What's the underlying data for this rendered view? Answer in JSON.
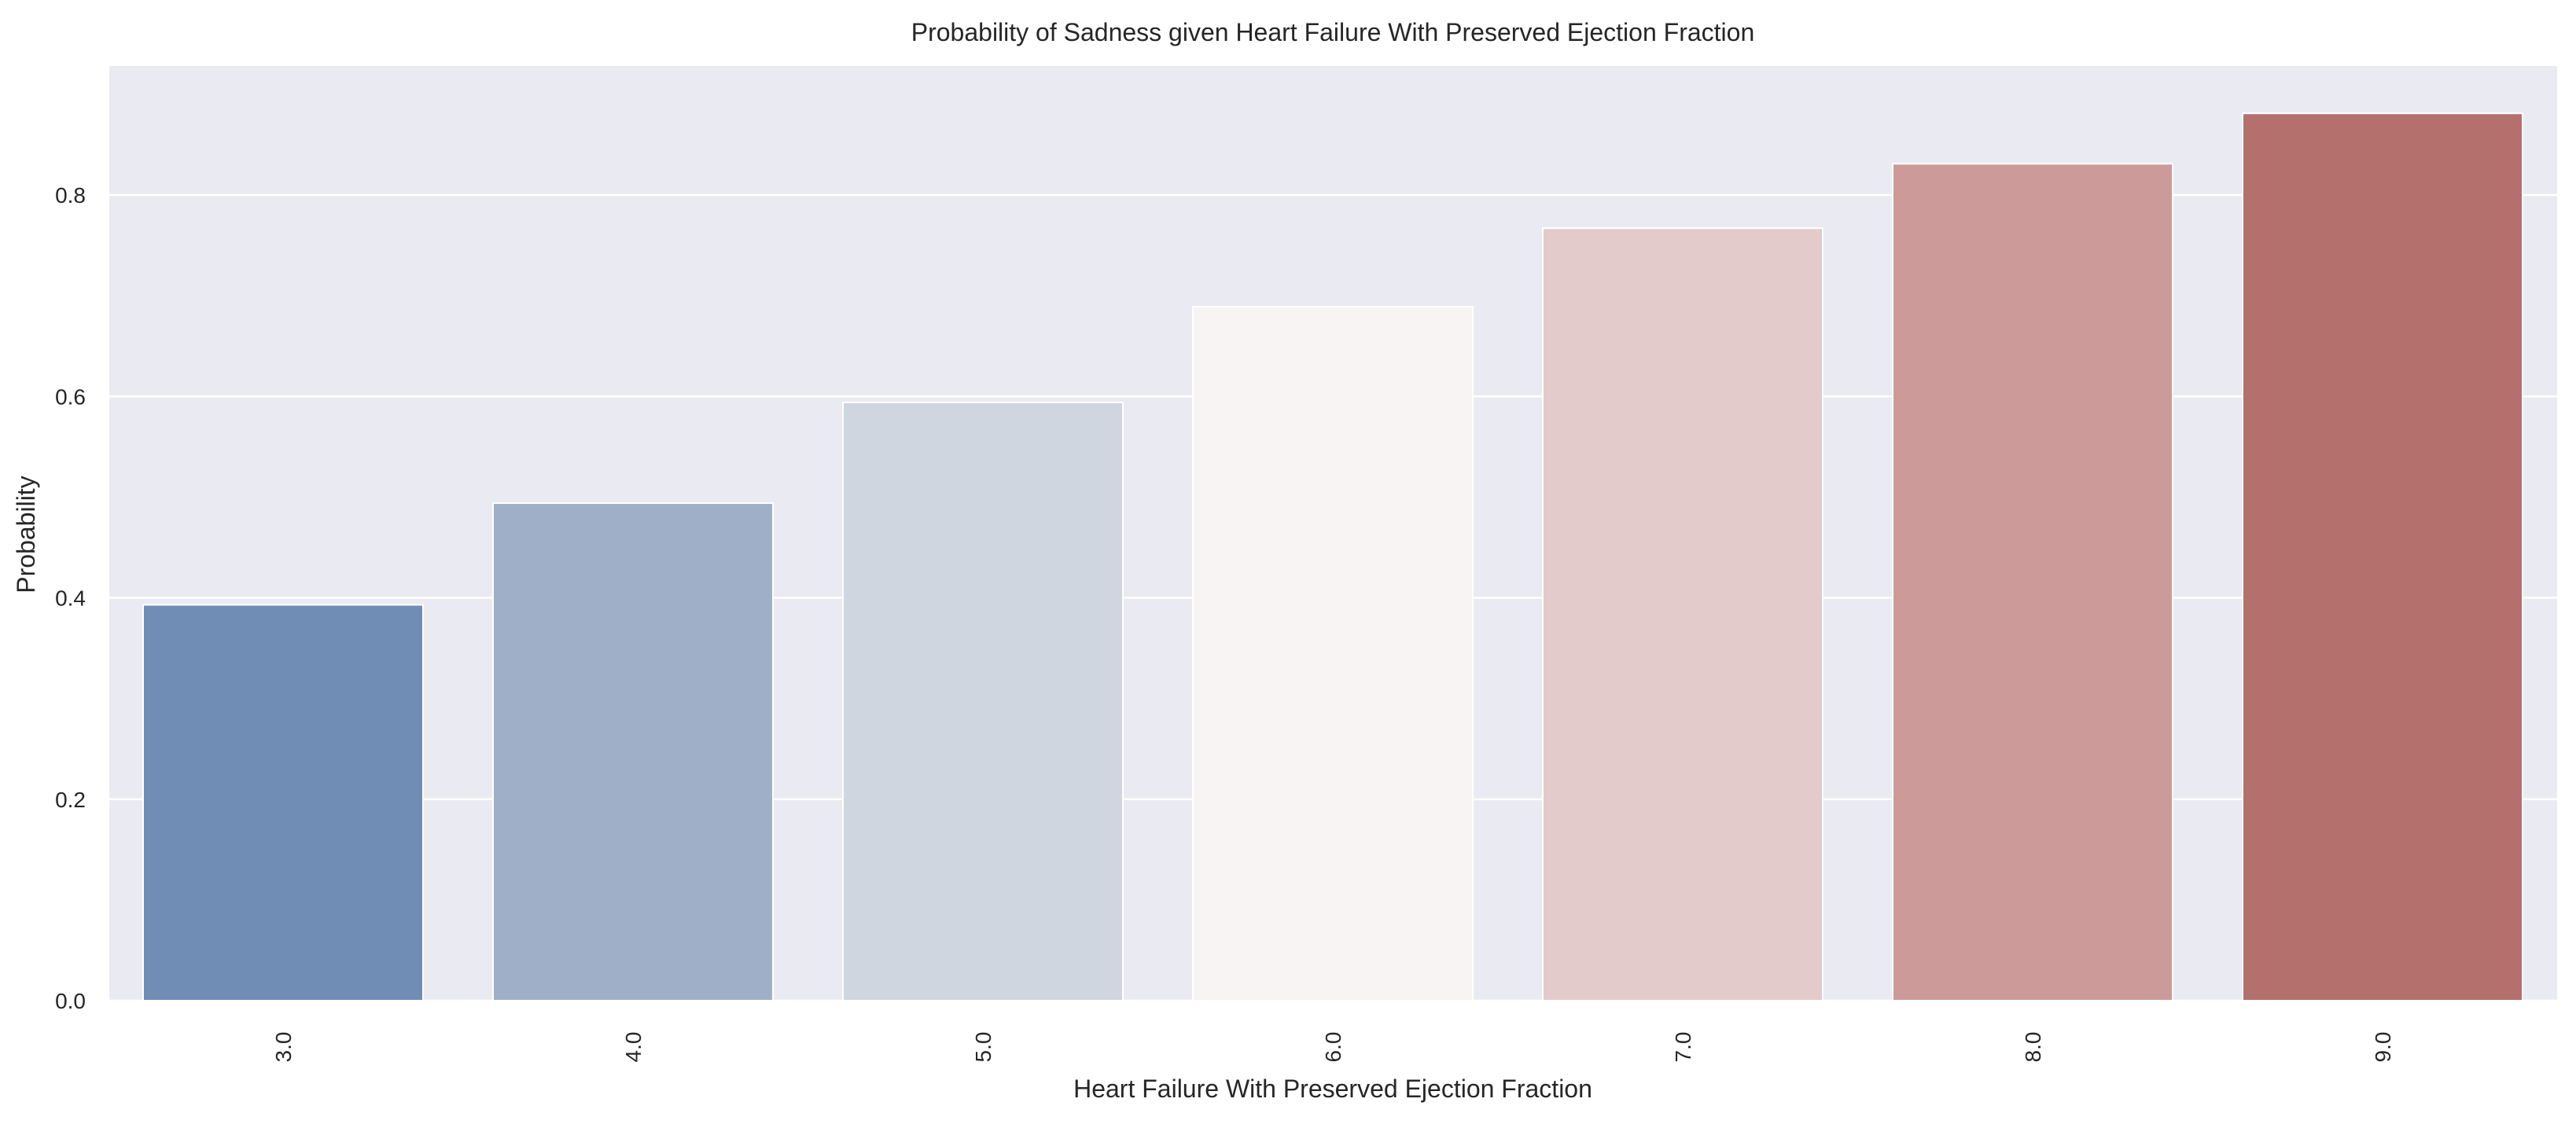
{
  "chart_data": {
    "type": "bar",
    "title": "Probability of Sadness given Heart Failure With Preserved Ejection Fraction",
    "xlabel": "Heart Failure With Preserved Ejection Fraction",
    "ylabel": "Probability",
    "categories": [
      "3.0",
      "4.0",
      "5.0",
      "6.0",
      "7.0",
      "8.0",
      "9.0"
    ],
    "values": [
      0.393,
      0.494,
      0.594,
      0.689,
      0.767,
      0.831,
      0.881
    ],
    "colors": [
      "#6f8db5",
      "#9fafc7",
      "#d0d6df",
      "#f8f4f3",
      "#e4cbcb",
      "#cc9b99",
      "#b3706d"
    ],
    "ylim": [
      0,
      0.928
    ],
    "yticks": [
      "0.0",
      "0.2",
      "0.4",
      "0.6",
      "0.8"
    ],
    "ytick_values": [
      0,
      0.2,
      0.4,
      0.6,
      0.8
    ],
    "grid": true,
    "legend": "none",
    "plot_background": "#eaeaf2",
    "grid_color": "#ffffff"
  }
}
